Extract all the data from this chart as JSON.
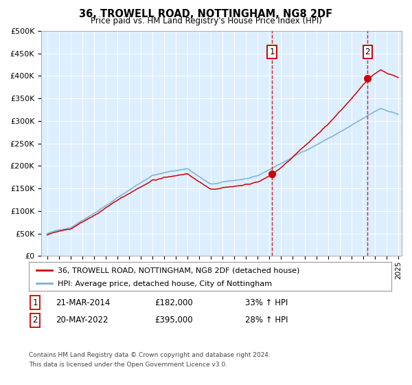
{
  "title": "36, TROWELL ROAD, NOTTINGHAM, NG8 2DF",
  "subtitle": "Price paid vs. HM Land Registry's House Price Index (HPI)",
  "legend_line1": "36, TROWELL ROAD, NOTTINGHAM, NG8 2DF (detached house)",
  "legend_line2": "HPI: Average price, detached house, City of Nottingham",
  "annotation1_date": "21-MAR-2014",
  "annotation1_price": "£182,000",
  "annotation1_hpi": "33% ↑ HPI",
  "annotation2_date": "20-MAY-2022",
  "annotation2_price": "£395,000",
  "annotation2_hpi": "28% ↑ HPI",
  "footnote1": "Contains HM Land Registry data © Crown copyright and database right 2024.",
  "footnote2": "This data is licensed under the Open Government Licence v3.0.",
  "red_color": "#cc0000",
  "blue_color": "#7ab0d4",
  "background_fill": "#ddeeff",
  "ylim": [
    0,
    500000
  ],
  "year_start": 1995,
  "year_end": 2025,
  "sale1_year": 2014.22,
  "sale1_value": 182000,
  "sale2_year": 2022.38,
  "sale2_value": 395000
}
